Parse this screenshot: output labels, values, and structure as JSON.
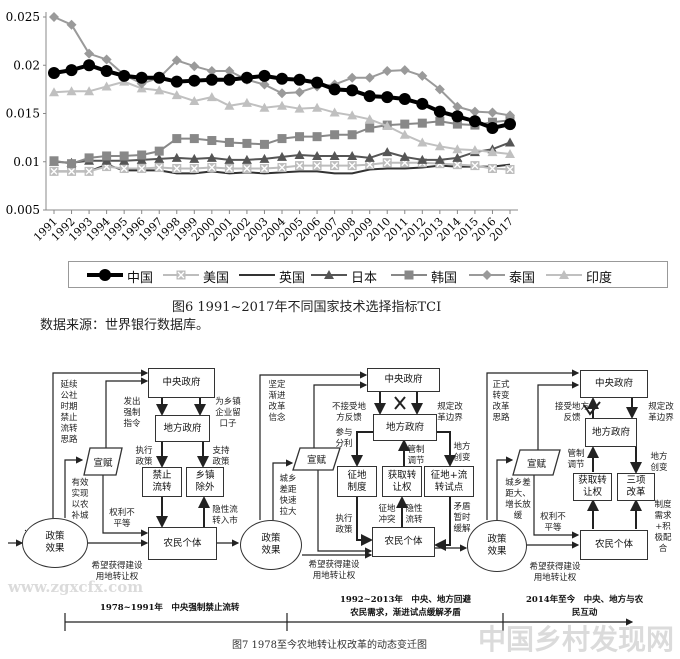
{
  "chart_data": {
    "type": "line",
    "title": "",
    "xlabel": "",
    "ylabel": "",
    "ylim": [
      0.005,
      0.025
    ],
    "yticks": [
      "0.005",
      "0.01",
      "0.015",
      "0.02",
      "0.025"
    ],
    "categories": [
      "1991",
      "1992",
      "1993",
      "1994",
      "1995",
      "1996",
      "1997",
      "1998",
      "1999",
      "2000",
      "2001",
      "2002",
      "2003",
      "2004",
      "2005",
      "2006",
      "2007",
      "2008",
      "2009",
      "2010",
      "2011",
      "2012",
      "2013",
      "2014",
      "2015",
      "2016",
      "2017"
    ],
    "grid": false,
    "legend_position": "bottom",
    "series": [
      {
        "name": "中国",
        "color": "#000000",
        "marker": "circle",
        "values": [
          0.0192,
          0.0195,
          0.02,
          0.0194,
          0.0189,
          0.0187,
          0.0187,
          0.0183,
          0.0184,
          0.0185,
          0.0185,
          0.0187,
          0.0189,
          0.0186,
          0.0185,
          0.0182,
          0.0175,
          0.0174,
          0.0168,
          0.0167,
          0.0165,
          0.016,
          0.0152,
          0.0147,
          0.0142,
          0.0135,
          0.0139
        ]
      },
      {
        "name": "美国",
        "color": "#bdbdbd",
        "marker": "square-x",
        "values": [
          0.009,
          0.009,
          0.009,
          0.0095,
          0.0093,
          0.0093,
          0.0094,
          0.0093,
          0.0093,
          0.0094,
          0.0093,
          0.0093,
          0.0093,
          0.0094,
          0.0096,
          0.0096,
          0.0096,
          0.0096,
          0.0097,
          0.0099,
          0.0099,
          0.0099,
          0.0098,
          0.0097,
          0.0096,
          0.0093,
          0.0092
        ]
      },
      {
        "name": "英国",
        "color": "#333333",
        "marker": "none",
        "values": [
          0.009,
          0.009,
          0.009,
          0.0097,
          0.0091,
          0.0091,
          0.0091,
          0.0088,
          0.0088,
          0.009,
          0.0088,
          0.0089,
          0.0088,
          0.0089,
          0.009,
          0.009,
          0.0088,
          0.0088,
          0.0092,
          0.0093,
          0.0093,
          0.0094,
          0.0096,
          0.0095,
          0.0095,
          0.0095,
          0.0097
        ]
      },
      {
        "name": "日本",
        "color": "#555555",
        "marker": "triangle",
        "values": [
          0.01,
          0.0099,
          0.0101,
          0.0101,
          0.0101,
          0.0102,
          0.0103,
          0.0104,
          0.0103,
          0.0104,
          0.0102,
          0.0102,
          0.0103,
          0.0105,
          0.0107,
          0.0106,
          0.0106,
          0.0106,
          0.0104,
          0.011,
          0.0105,
          0.0102,
          0.0102,
          0.0104,
          0.011,
          0.0113,
          0.012
        ]
      },
      {
        "name": "韩国",
        "color": "#888888",
        "marker": "square",
        "values": [
          0.0101,
          0.0098,
          0.0104,
          0.0106,
          0.0106,
          0.0107,
          0.0111,
          0.0124,
          0.0124,
          0.0122,
          0.012,
          0.0119,
          0.0118,
          0.0124,
          0.0126,
          0.0126,
          0.0128,
          0.0128,
          0.0135,
          0.0138,
          0.0139,
          0.014,
          0.0142,
          0.0139,
          0.0138,
          0.0141,
          0.0143
        ]
      },
      {
        "name": "泰国",
        "color": "#9a9a9a",
        "marker": "diamond",
        "values": [
          0.025,
          0.0242,
          0.0212,
          0.0206,
          0.019,
          0.0181,
          0.0187,
          0.0205,
          0.0199,
          0.0194,
          0.0194,
          0.0185,
          0.018,
          0.0171,
          0.0172,
          0.0178,
          0.018,
          0.0187,
          0.0187,
          0.0194,
          0.0195,
          0.0189,
          0.0175,
          0.0157,
          0.0152,
          0.0151,
          0.0148
        ]
      },
      {
        "name": "印度",
        "color": "#c0c0c0",
        "marker": "triangle",
        "values": [
          0.0172,
          0.0173,
          0.0173,
          0.0178,
          0.0183,
          0.0176,
          0.0174,
          0.0169,
          0.0163,
          0.0167,
          0.0158,
          0.0161,
          0.0156,
          0.0158,
          0.0155,
          0.0156,
          0.0151,
          0.0148,
          0.0144,
          0.0137,
          0.0128,
          0.012,
          0.0116,
          0.0113,
          0.0112,
          0.011,
          0.0108
        ]
      }
    ]
  },
  "fig6": {
    "caption": "图6  1991~2017年不同国家技术选择指标TCI",
    "source": "数据来源：世界银行数据库。"
  },
  "fig7": {
    "caption": "图7  1978至今农地转让权改革的动态变迁图",
    "dots": "......",
    "p1": {
      "central": "中央政府",
      "local": "地方政府",
      "xuanfu": "宣赋",
      "ban": "禁止流转",
      "town": "乡镇除外",
      "farmer": "农民个体",
      "effect": "政策效果",
      "continue": "延续公社时期禁止流转思路",
      "order": "发出强制指令",
      "leave": "为乡镇企业留口子",
      "exec": "执行政策",
      "support": "支持政策",
      "city": "有效实现以农补城",
      "unequal": "权利不平等",
      "hidden": "隐性流转入市",
      "hope": "希望获得建设用地转让权",
      "period": "1978~1991年　中央强制禁止流转"
    },
    "p2": {
      "central": "中央政府",
      "local": "地方政府",
      "xuanfu": "宣赋",
      "zhengdi": "征地制度",
      "get": "获取转让权",
      "pilot": "征地+流转试点",
      "farmer": "农民个体",
      "effect": "政策效果",
      "belief": "坚定渐进改革信念",
      "reject": "不接受地方反馈",
      "boundary": "规定改革边界",
      "share": "参与分利",
      "regulate": "管制调节",
      "innovate": "地方创变",
      "gap": "城乡差距快速拉大",
      "conflict": "征地冲突",
      "hidden": "隐性流转",
      "exec": "执行政策",
      "ease": "矛盾暂时缓解",
      "hope": "希望获得建设用地转让权",
      "period_1": "1992~2013年　中央、地方回避",
      "period_2": "农民需求，渐进试点缓解矛盾"
    },
    "p3": {
      "central": "中央政府",
      "local": "地方政府",
      "xuanfu": "宣赋",
      "get": "获取转让权",
      "three": "三项改革",
      "farmer": "农民个体",
      "effect": "政策效果",
      "formal": "正式转变改革思路",
      "accept": "接受地方反馈",
      "boundary": "规定改革边界",
      "regulate": "管制调节",
      "innovate": "地方创变",
      "gap": "城乡差距大、增长放缓",
      "unequal": "权利不平等",
      "demand": "制度需求+积极配合",
      "hope": "希望获得建设用地转让权",
      "period_1": "2014年至今　中央、地方与农",
      "period_2": "民互动"
    },
    "watermark": "中国乡村发现网",
    "watermark_url": "www.zgxcfx.com"
  }
}
